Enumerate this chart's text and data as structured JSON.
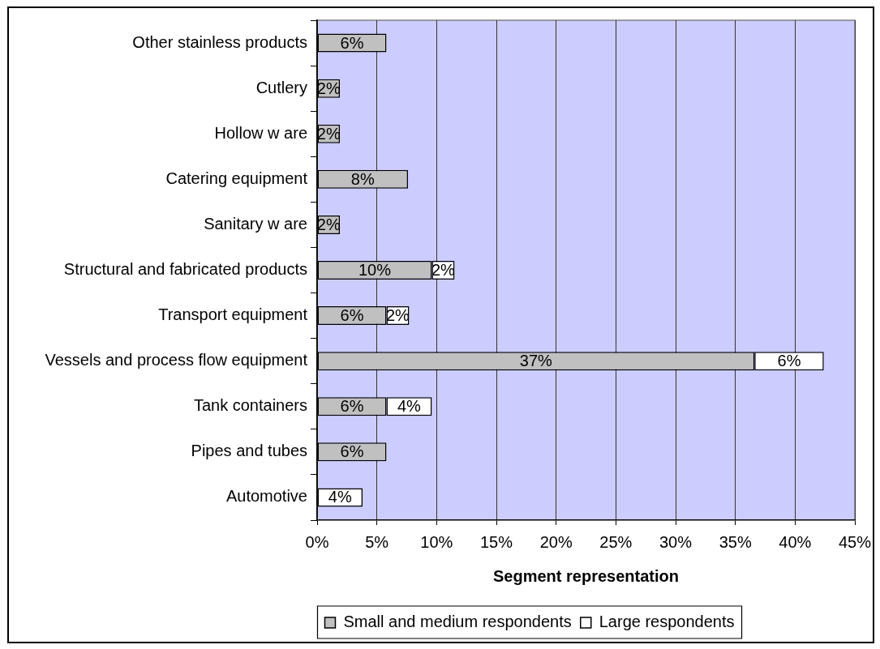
{
  "chart_data": {
    "type": "bar",
    "orientation": "horizontal",
    "stacked": true,
    "xlabel": "Segment representation",
    "categories": [
      "Other stainless products",
      "Cutlery",
      "Hollow w are",
      "Catering equipment",
      "Sanitary w are",
      "Structural and fabricated products",
      "Transport equipment",
      "Vessels and process flow equipment",
      "Tank containers",
      "Pipes and tubes",
      "Automotive"
    ],
    "series": [
      {
        "name": "Small and medium respondents",
        "color": "#c0c0c0",
        "values": [
          5.8,
          1.9,
          1.9,
          7.6,
          1.9,
          9.6,
          5.8,
          36.6,
          5.8,
          5.8,
          null
        ],
        "value_labels": [
          "6%",
          "2%",
          "2%",
          "8%",
          "2%",
          "10%",
          "6%",
          "37%",
          "6%",
          "6%",
          null
        ]
      },
      {
        "name": "Large respondents",
        "color": "#ffffff",
        "values": [
          null,
          null,
          null,
          null,
          null,
          1.9,
          1.9,
          5.8,
          3.8,
          null,
          3.8
        ],
        "value_labels": [
          null,
          null,
          null,
          null,
          null,
          "2%",
          "2%",
          "6%",
          "4%",
          null,
          "4%"
        ]
      }
    ],
    "xlim": [
      0,
      45
    ],
    "xticks": [
      {
        "value": 0,
        "label": "0%"
      },
      {
        "value": 5,
        "label": "5%"
      },
      {
        "value": 10,
        "label": "10%"
      },
      {
        "value": 15,
        "label": "15%"
      },
      {
        "value": 20,
        "label": "20%"
      },
      {
        "value": 25,
        "label": "25%"
      },
      {
        "value": 30,
        "label": "30%"
      },
      {
        "value": 35,
        "label": "35%"
      },
      {
        "value": 40,
        "label": "40%"
      },
      {
        "value": 45,
        "label": "45%"
      }
    ],
    "grid": "x",
    "legend": "bottom"
  }
}
